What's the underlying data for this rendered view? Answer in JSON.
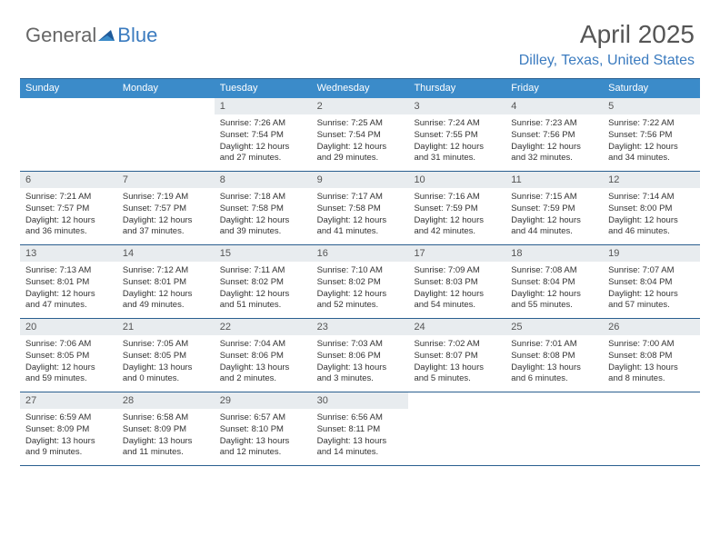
{
  "brand": {
    "part1": "General",
    "part2": "Blue"
  },
  "header": {
    "month_title": "April 2025",
    "location": "Dilley, Texas, United States"
  },
  "colors": {
    "header_bg": "#3b8bc9",
    "border": "#2a5f8f",
    "daynum_bg": "#e8ecef",
    "accent": "#3b7bbf"
  },
  "day_names": [
    "Sunday",
    "Monday",
    "Tuesday",
    "Wednesday",
    "Thursday",
    "Friday",
    "Saturday"
  ],
  "weeks": [
    [
      {
        "empty": true
      },
      {
        "empty": true
      },
      {
        "num": "1",
        "sunrise": "7:26 AM",
        "sunset": "7:54 PM",
        "daylight": "12 hours and 27 minutes."
      },
      {
        "num": "2",
        "sunrise": "7:25 AM",
        "sunset": "7:54 PM",
        "daylight": "12 hours and 29 minutes."
      },
      {
        "num": "3",
        "sunrise": "7:24 AM",
        "sunset": "7:55 PM",
        "daylight": "12 hours and 31 minutes."
      },
      {
        "num": "4",
        "sunrise": "7:23 AM",
        "sunset": "7:56 PM",
        "daylight": "12 hours and 32 minutes."
      },
      {
        "num": "5",
        "sunrise": "7:22 AM",
        "sunset": "7:56 PM",
        "daylight": "12 hours and 34 minutes."
      }
    ],
    [
      {
        "num": "6",
        "sunrise": "7:21 AM",
        "sunset": "7:57 PM",
        "daylight": "12 hours and 36 minutes."
      },
      {
        "num": "7",
        "sunrise": "7:19 AM",
        "sunset": "7:57 PM",
        "daylight": "12 hours and 37 minutes."
      },
      {
        "num": "8",
        "sunrise": "7:18 AM",
        "sunset": "7:58 PM",
        "daylight": "12 hours and 39 minutes."
      },
      {
        "num": "9",
        "sunrise": "7:17 AM",
        "sunset": "7:58 PM",
        "daylight": "12 hours and 41 minutes."
      },
      {
        "num": "10",
        "sunrise": "7:16 AM",
        "sunset": "7:59 PM",
        "daylight": "12 hours and 42 minutes."
      },
      {
        "num": "11",
        "sunrise": "7:15 AM",
        "sunset": "7:59 PM",
        "daylight": "12 hours and 44 minutes."
      },
      {
        "num": "12",
        "sunrise": "7:14 AM",
        "sunset": "8:00 PM",
        "daylight": "12 hours and 46 minutes."
      }
    ],
    [
      {
        "num": "13",
        "sunrise": "7:13 AM",
        "sunset": "8:01 PM",
        "daylight": "12 hours and 47 minutes."
      },
      {
        "num": "14",
        "sunrise": "7:12 AM",
        "sunset": "8:01 PM",
        "daylight": "12 hours and 49 minutes."
      },
      {
        "num": "15",
        "sunrise": "7:11 AM",
        "sunset": "8:02 PM",
        "daylight": "12 hours and 51 minutes."
      },
      {
        "num": "16",
        "sunrise": "7:10 AM",
        "sunset": "8:02 PM",
        "daylight": "12 hours and 52 minutes."
      },
      {
        "num": "17",
        "sunrise": "7:09 AM",
        "sunset": "8:03 PM",
        "daylight": "12 hours and 54 minutes."
      },
      {
        "num": "18",
        "sunrise": "7:08 AM",
        "sunset": "8:04 PM",
        "daylight": "12 hours and 55 minutes."
      },
      {
        "num": "19",
        "sunrise": "7:07 AM",
        "sunset": "8:04 PM",
        "daylight": "12 hours and 57 minutes."
      }
    ],
    [
      {
        "num": "20",
        "sunrise": "7:06 AM",
        "sunset": "8:05 PM",
        "daylight": "12 hours and 59 minutes."
      },
      {
        "num": "21",
        "sunrise": "7:05 AM",
        "sunset": "8:05 PM",
        "daylight": "13 hours and 0 minutes."
      },
      {
        "num": "22",
        "sunrise": "7:04 AM",
        "sunset": "8:06 PM",
        "daylight": "13 hours and 2 minutes."
      },
      {
        "num": "23",
        "sunrise": "7:03 AM",
        "sunset": "8:06 PM",
        "daylight": "13 hours and 3 minutes."
      },
      {
        "num": "24",
        "sunrise": "7:02 AM",
        "sunset": "8:07 PM",
        "daylight": "13 hours and 5 minutes."
      },
      {
        "num": "25",
        "sunrise": "7:01 AM",
        "sunset": "8:08 PM",
        "daylight": "13 hours and 6 minutes."
      },
      {
        "num": "26",
        "sunrise": "7:00 AM",
        "sunset": "8:08 PM",
        "daylight": "13 hours and 8 minutes."
      }
    ],
    [
      {
        "num": "27",
        "sunrise": "6:59 AM",
        "sunset": "8:09 PM",
        "daylight": "13 hours and 9 minutes."
      },
      {
        "num": "28",
        "sunrise": "6:58 AM",
        "sunset": "8:09 PM",
        "daylight": "13 hours and 11 minutes."
      },
      {
        "num": "29",
        "sunrise": "6:57 AM",
        "sunset": "8:10 PM",
        "daylight": "13 hours and 12 minutes."
      },
      {
        "num": "30",
        "sunrise": "6:56 AM",
        "sunset": "8:11 PM",
        "daylight": "13 hours and 14 minutes."
      },
      {
        "empty": true
      },
      {
        "empty": true
      },
      {
        "empty": true
      }
    ]
  ],
  "labels": {
    "sunrise_prefix": "Sunrise: ",
    "sunset_prefix": "Sunset: ",
    "daylight_prefix": "Daylight: "
  }
}
